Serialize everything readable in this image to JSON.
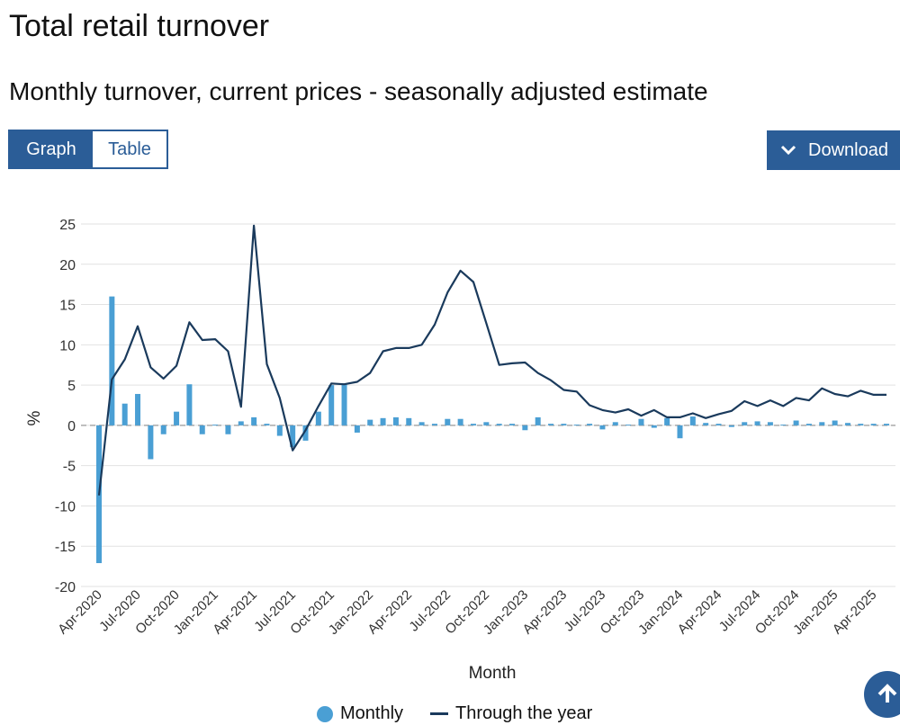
{
  "page": {
    "title": "Total retail turnover",
    "subtitle": "Monthly turnover, current prices - seasonally adjusted estimate",
    "tabs": [
      "Graph",
      "Table"
    ],
    "download_label": "Download",
    "icons": {
      "download": "chevron-down-icon",
      "up": "arrow-up-icon"
    },
    "colors": {
      "accent": "#2b5d97",
      "monthly": "#4a9fd4",
      "through_year": "#1a3a5c"
    }
  },
  "chart_data": {
    "type": "bar",
    "xlabel": "Month",
    "ylabel": "%",
    "ylim": [
      -20,
      25
    ],
    "yticks": [
      25,
      20,
      15,
      10,
      5,
      0,
      -5,
      -10,
      -15,
      -20
    ],
    "grid": true,
    "legend_position": "bottom",
    "x_tick_labels": [
      "Apr-2020",
      "Jul-2020",
      "Oct-2020",
      "Jan-2021",
      "Apr-2021",
      "Jul-2021",
      "Oct-2021",
      "Jan-2022",
      "Apr-2022",
      "Jul-2022",
      "Oct-2022",
      "Jan-2023",
      "Apr-2023",
      "Jul-2023",
      "Oct-2023",
      "Jan-2024",
      "Apr-2024",
      "Jul-2024",
      "Oct-2024",
      "Jan-2025",
      "Apr-2025"
    ],
    "categories": [
      "Apr-2020",
      "May-2020",
      "Jun-2020",
      "Jul-2020",
      "Aug-2020",
      "Sep-2020",
      "Oct-2020",
      "Nov-2020",
      "Dec-2020",
      "Jan-2021",
      "Feb-2021",
      "Mar-2021",
      "Apr-2021",
      "May-2021",
      "Jun-2021",
      "Jul-2021",
      "Aug-2021",
      "Sep-2021",
      "Oct-2021",
      "Nov-2021",
      "Dec-2021",
      "Jan-2022",
      "Feb-2022",
      "Mar-2022",
      "Apr-2022",
      "May-2022",
      "Jun-2022",
      "Jul-2022",
      "Aug-2022",
      "Sep-2022",
      "Oct-2022",
      "Nov-2022",
      "Dec-2022",
      "Jan-2023",
      "Feb-2023",
      "Mar-2023",
      "Apr-2023",
      "May-2023",
      "Jun-2023",
      "Jul-2023",
      "Aug-2023",
      "Sep-2023",
      "Oct-2023",
      "Nov-2023",
      "Dec-2023",
      "Jan-2024",
      "Feb-2024",
      "Mar-2024",
      "Apr-2024",
      "May-2024",
      "Jun-2024",
      "Jul-2024",
      "Aug-2024",
      "Sep-2024",
      "Oct-2024",
      "Nov-2024",
      "Dec-2024",
      "Jan-2025",
      "Feb-2025",
      "Mar-2025",
      "Apr-2025",
      "May-2025"
    ],
    "series": [
      {
        "name": "Monthly",
        "type": "bar",
        "values": [
          -17.1,
          16.0,
          2.7,
          3.9,
          -4.2,
          -1.1,
          1.7,
          5.1,
          -1.1,
          0.1,
          -1.1,
          0.5,
          1.0,
          0.2,
          -1.3,
          -2.7,
          -1.9,
          1.7,
          5.0,
          5.1,
          -0.9,
          0.7,
          0.9,
          1.0,
          0.9,
          0.4,
          0.2,
          0.8,
          0.8,
          0.2,
          0.4,
          0.2,
          0.2,
          -0.6,
          1.0,
          0.2,
          0.2,
          0.1,
          0.2,
          -0.5,
          0.4,
          0.1,
          0.8,
          -0.3,
          0.9,
          -1.6,
          1.1,
          0.3,
          0.2,
          -0.2,
          0.4,
          0.5,
          0.4,
          0.1,
          0.6,
          0.2,
          0.4,
          0.6,
          0.3,
          0.2,
          0.2,
          0.2
        ]
      },
      {
        "name": "Through the year",
        "type": "line",
        "values": [
          -8.7,
          5.7,
          8.2,
          12.3,
          7.2,
          5.8,
          7.4,
          12.8,
          10.6,
          10.7,
          9.2,
          2.3,
          24.8,
          7.6,
          3.4,
          -3.1,
          -0.6,
          2.4,
          5.2,
          5.1,
          5.4,
          6.5,
          9.2,
          9.6,
          9.6,
          10.0,
          12.5,
          16.5,
          19.2,
          17.8,
          12.7,
          7.5,
          7.7,
          7.8,
          6.5,
          5.6,
          4.4,
          4.2,
          2.5,
          1.9,
          1.6,
          2.0,
          1.2,
          1.9,
          1.0,
          1.0,
          1.5,
          0.9,
          1.4,
          1.8,
          3.0,
          2.4,
          3.1,
          2.4,
          3.4,
          3.1,
          4.6,
          3.9,
          3.6,
          4.3,
          3.8,
          3.8
        ]
      }
    ]
  }
}
